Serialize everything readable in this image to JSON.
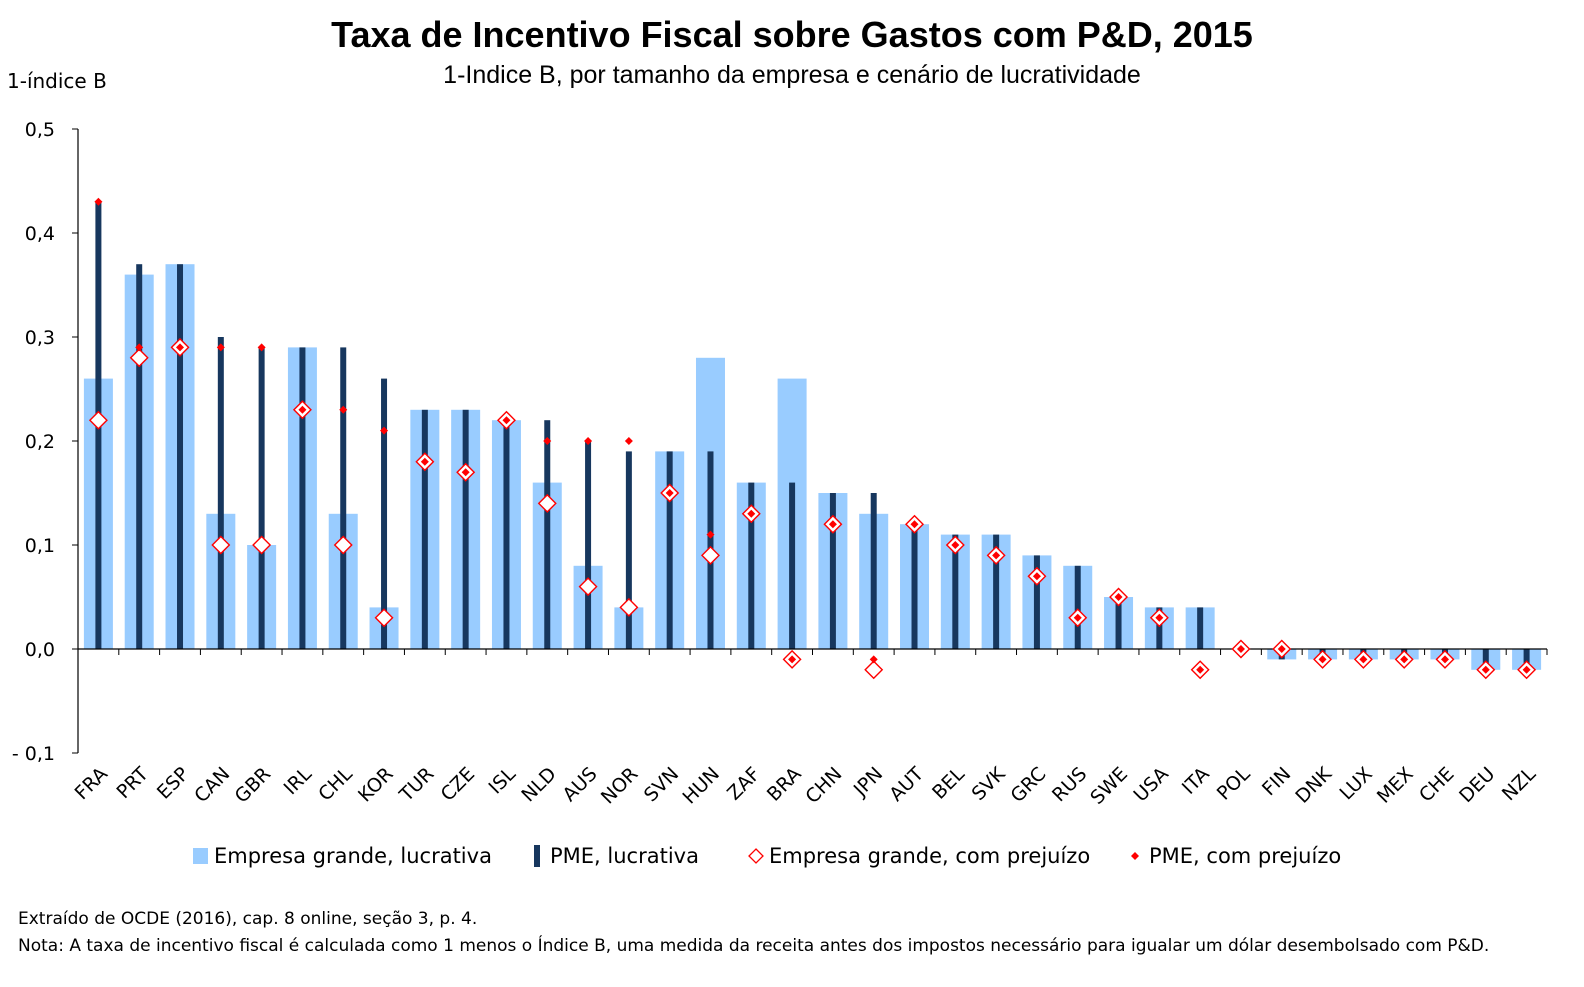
{
  "title": "Taxa de Incentivo Fiscal sobre Gastos com P&D, 2015",
  "subtitle": "1-Indice B, por tamanho da empresa e cenário de lucratividade",
  "notes": {
    "source": "Extraído de OCDE (2016), cap. 8 online, seção 3, p. 4.",
    "note": "Nota: A taxa de incentivo fiscal é calculada como 1 menos o Índice B, uma medida da receita antes dos impostos necessário para igualar um dólar desembolsado com P&D."
  },
  "colors": {
    "large_profit": "#99ccff",
    "sme_profit": "#17375e",
    "large_loss": "#ff0000",
    "sme_loss": "#ff0000"
  },
  "chart_data": {
    "type": "bar",
    "ylabel": "1-índice B",
    "ylim": [
      -0.1,
      0.5
    ],
    "yticks": [
      "- 0,1",
      "0,0",
      "0,1",
      "0,2",
      "0,3",
      "0,4",
      "0,5"
    ],
    "ytick_values": [
      -0.1,
      0.0,
      0.1,
      0.2,
      0.3,
      0.4,
      0.5
    ],
    "legend_position": "bottom",
    "categories": [
      "FRA",
      "PRT",
      "ESP",
      "CAN",
      "GBR",
      "IRL",
      "CHL",
      "KOR",
      "TUR",
      "CZE",
      "ISL",
      "NLD",
      "AUS",
      "NOR",
      "SVN",
      "HUN",
      "ZAF",
      "BRA",
      "CHN",
      "JPN",
      "AUT",
      "BEL",
      "SVK",
      "GRC",
      "RUS",
      "SWE",
      "USA",
      "ITA",
      "POL",
      "FIN",
      "DNK",
      "LUX",
      "MEX",
      "CHE",
      "DEU",
      "NZL"
    ],
    "series": [
      {
        "name": "Empresa grande, lucrativa",
        "marker": "wide-bar",
        "values": [
          0.26,
          0.36,
          0.37,
          0.13,
          0.1,
          0.29,
          0.13,
          0.04,
          0.23,
          0.23,
          0.22,
          0.16,
          0.08,
          0.04,
          0.19,
          0.28,
          0.16,
          0.26,
          0.15,
          0.13,
          0.12,
          0.11,
          0.11,
          0.09,
          0.08,
          0.05,
          0.04,
          0.04,
          0.0,
          -0.01,
          -0.01,
          -0.01,
          -0.01,
          -0.01,
          -0.02,
          -0.02
        ]
      },
      {
        "name": "PME, lucrativa",
        "marker": "thin-bar",
        "values": [
          0.43,
          0.37,
          0.37,
          0.3,
          0.29,
          0.29,
          0.29,
          0.26,
          0.23,
          0.23,
          0.22,
          0.22,
          0.2,
          0.19,
          0.19,
          0.19,
          0.16,
          0.16,
          0.15,
          0.15,
          0.12,
          0.11,
          0.11,
          0.09,
          0.08,
          0.05,
          0.04,
          0.04,
          0.0,
          -0.01,
          -0.01,
          -0.01,
          -0.01,
          -0.01,
          -0.02,
          -0.02
        ]
      },
      {
        "name": "Empresa grande, com prejuízo",
        "marker": "hollow-diamond",
        "values": [
          0.22,
          0.28,
          0.29,
          0.1,
          0.1,
          0.23,
          0.1,
          0.03,
          0.18,
          0.17,
          0.22,
          0.14,
          0.06,
          0.04,
          0.15,
          0.09,
          0.13,
          -0.01,
          0.12,
          -0.02,
          0.12,
          0.1,
          0.09,
          0.07,
          0.03,
          0.05,
          0.03,
          -0.02,
          0.0,
          0.0,
          -0.01,
          -0.01,
          -0.01,
          -0.01,
          -0.02,
          -0.02
        ]
      },
      {
        "name": "PME, com prejuízo",
        "marker": "small-diamond",
        "values": [
          0.43,
          0.29,
          0.29,
          0.29,
          0.29,
          0.23,
          0.23,
          0.21,
          0.18,
          0.17,
          0.22,
          0.2,
          0.2,
          0.2,
          0.15,
          0.11,
          0.13,
          -0.01,
          0.12,
          -0.01,
          0.12,
          0.1,
          0.09,
          0.07,
          0.03,
          0.05,
          0.03,
          -0.02,
          0.0,
          0.0,
          -0.01,
          -0.01,
          -0.01,
          -0.01,
          -0.02,
          -0.02
        ]
      }
    ]
  }
}
